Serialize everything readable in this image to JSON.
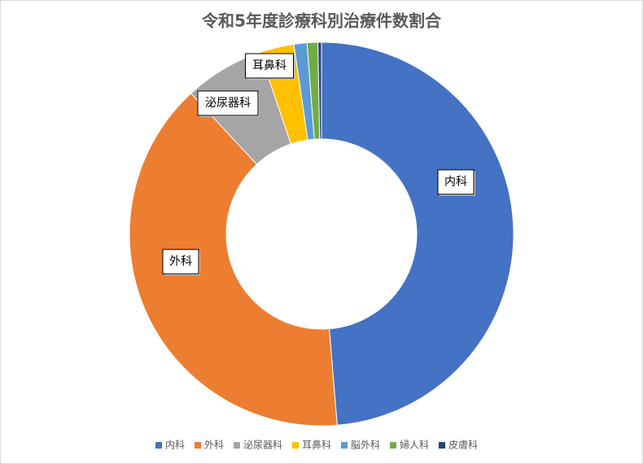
{
  "chart_data": {
    "type": "pie",
    "title": "令和5年度診療科別治療件数割合",
    "categories": [
      "内科",
      "外科",
      "泌尿器科",
      "耳鼻科",
      "脳外科",
      "婦人科",
      "皮膚科"
    ],
    "values": [
      48.7,
      39.4,
      6.7,
      2.9,
      1.1,
      0.9,
      0.3
    ],
    "colors": [
      "#4472c4",
      "#ed7d31",
      "#a5a5a5",
      "#ffc000",
      "#5b9bd5",
      "#70ad47",
      "#264478"
    ],
    "legend": "bottom"
  }
}
